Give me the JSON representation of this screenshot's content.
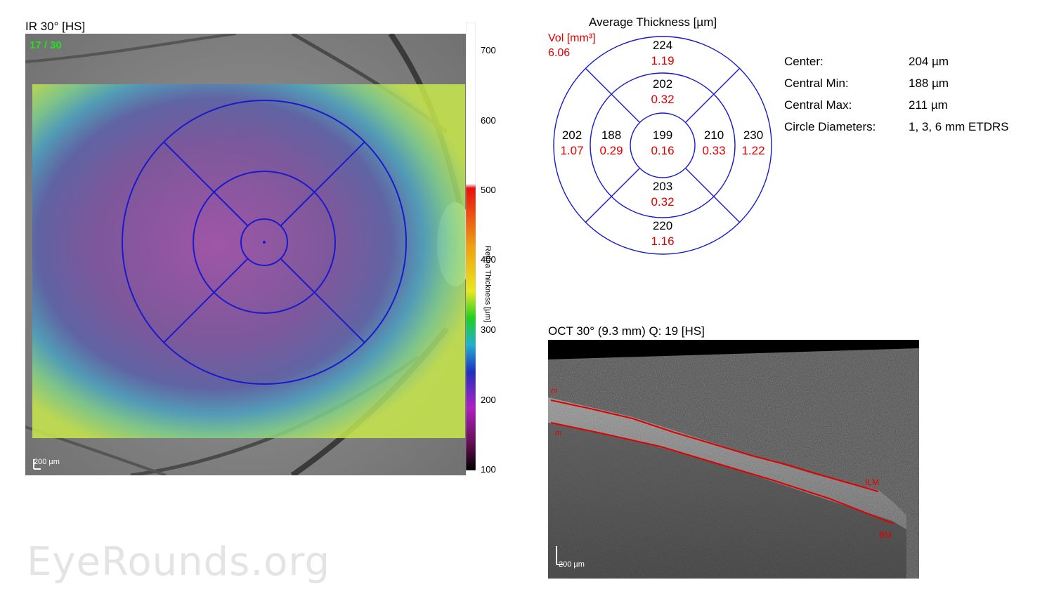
{
  "fundus": {
    "title": "IR 30° [HS]",
    "scan_count": "17 / 30",
    "scale_bar": "200 µm"
  },
  "colorbar": {
    "label": "Retina Thickness [µm]",
    "ticks": [
      "700",
      "600",
      "500",
      "400",
      "300",
      "200",
      "100"
    ]
  },
  "etdrs": {
    "title": "Average Thickness [µm]",
    "vol_label_line1": "Vol [mm³]",
    "vol_total": "6.06",
    "sectors": {
      "outer_superior": {
        "thickness": "224",
        "volume": "1.19"
      },
      "inner_superior": {
        "thickness": "202",
        "volume": "0.32"
      },
      "outer_temporal": {
        "thickness": "202",
        "volume": "1.07"
      },
      "inner_temporal": {
        "thickness": "188",
        "volume": "0.29"
      },
      "center": {
        "thickness": "199",
        "volume": "0.16"
      },
      "inner_nasal": {
        "thickness": "210",
        "volume": "0.33"
      },
      "outer_nasal": {
        "thickness": "230",
        "volume": "1.22"
      },
      "inner_inferior": {
        "thickness": "203",
        "volume": "0.32"
      },
      "outer_inferior": {
        "thickness": "220",
        "volume": "1.16"
      }
    }
  },
  "stats": {
    "center_label": "Center:",
    "center_value": "204 µm",
    "min_label": "Central Min:",
    "min_value": "188 µm",
    "max_label": "Central Max:",
    "max_value": "211 µm",
    "diam_label": "Circle Diameters:",
    "diam_value": "1, 3, 6 mm ETDRS"
  },
  "oct": {
    "title": "OCT 30° (9.3 mm) Q: 19 [HS]",
    "ilm_label": "ILM",
    "bm_label": "BM",
    "scale_bar": "200 µm"
  },
  "watermark": "EyeRounds.org",
  "colors": {
    "grid": "#1a1acc",
    "volume": "#e00000",
    "segment": "#e00000",
    "quality": "#22e022"
  }
}
